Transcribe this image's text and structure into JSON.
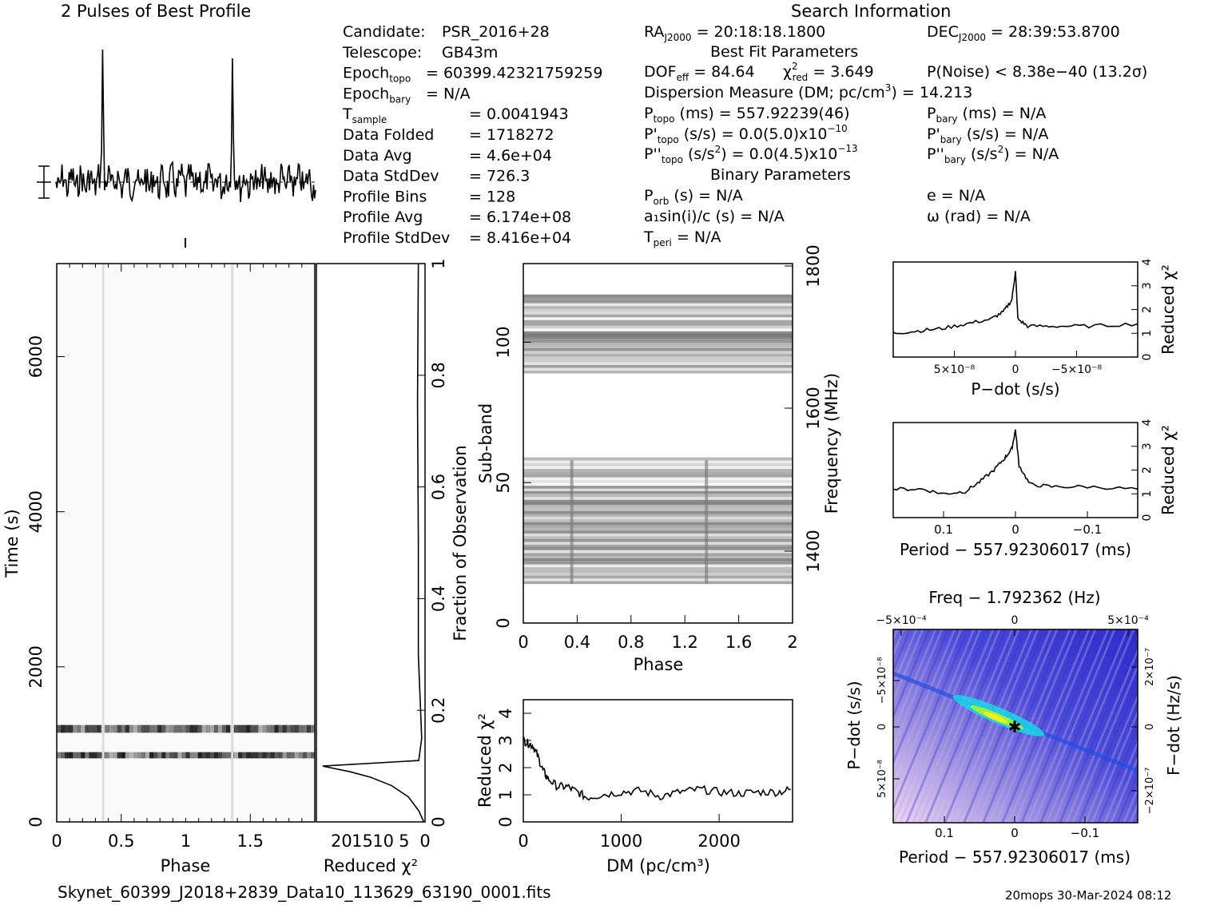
{
  "page": {
    "profile_title": "2 Pulses of Best Profile",
    "search_title": "Search Information",
    "footer_file": "Skynet_60399_J2018+2839_Data10_113629_63190_0001.fits",
    "footer_stamp": "20mops 30-Mar-2024 08:12"
  },
  "info": {
    "left": [
      {
        "label": "Candidate:",
        "value": "PSR_2016+28"
      },
      {
        "label": "Telescope:",
        "value": "GB43m"
      },
      {
        "label": "Epoch",
        "sub": "topo",
        "value": "= 60399.42321759259"
      },
      {
        "label": "Epoch",
        "sub": "bary",
        "value": "= N/A"
      },
      {
        "label": "T",
        "sub": "sample",
        "value": "=   0.0041943"
      },
      {
        "label": "Data Folded",
        "value": "=   1718272"
      },
      {
        "label": "Data Avg",
        "value": "=   4.6e+04"
      },
      {
        "label": "Data StdDev",
        "value": "=   726.3"
      },
      {
        "label": "Profile Bins",
        "value": "=   128"
      },
      {
        "label": "Profile Avg",
        "value": "=   6.174e+08"
      },
      {
        "label": "Profile StdDev",
        "value": "=   8.416e+04"
      }
    ],
    "ra": "= 20:18:18.1800",
    "dec": "= 28:39:53.8700",
    "best_fit_header": "Best Fit Parameters",
    "dof": "= 84.64",
    "chi2red": "= 3.649",
    "pnoise": "P(Noise) < 8.38e−40   (13.2σ)",
    "dm": "Dispersion Measure (DM; pc/cm",
    "dm_value": ") = 14.213",
    "ptopo": "(ms) =  557.92239(46)",
    "pdtopo": "(s/s) = 0.0(5.0)x10",
    "pdtopo_exp": "−10",
    "pddtopo": "(s/s",
    "pddtopo_val": ") = 0.0(4.5)x10",
    "pddtopo_exp": "−13",
    "pbary": "(ms) = N/A",
    "pdbary": "(s/s) = N/A",
    "pddbary": ") = N/A",
    "binary_header": "Binary Parameters",
    "porb": "(s) = N/A",
    "asini": "a₁sin(i)/c (s) = N/A",
    "tperi": "= N/A",
    "ecc": "e = N/A",
    "omega": "ω (rad) = N/A"
  },
  "axes": {
    "time_ylabel": "Time (s)",
    "phase": "Phase",
    "redchi": "Reduced χ²",
    "frac_obs": "Fraction of Observation",
    "subband": "Sub-band",
    "frequency": "Frequency (MHz)",
    "dm_xlabel": "DM (pc/cm³)",
    "pdot_xlabel": "P−dot (s/s)",
    "period_xlabel": "Period − 557.92306017 (ms)",
    "freq_title": "Freq − 1.792362 (Hz)",
    "pdot_ylabel": "P−dot (s/s)",
    "fdot_ylabel": "F−dot (Hz/s)"
  },
  "chart_data": [
    {
      "type": "line",
      "id": "profile",
      "title": "2 Pulses of Best Profile",
      "x_range": [
        0,
        2
      ],
      "pulse_phases": [
        0.36,
        1.36
      ],
      "note_series": "two pulse periods of folded profile, noise-like baseline with single narrow spike per period"
    },
    {
      "type": "heatmap",
      "id": "time_phase",
      "xlabel": "Phase",
      "ylabel": "Time (s)",
      "xlim": [
        0,
        2
      ],
      "ylim": [
        0,
        7200
      ],
      "x_ticks": [
        "0",
        "0.5",
        "1",
        "1.5"
      ],
      "y_ticks": [
        "0",
        "2000",
        "4000",
        "6000"
      ],
      "bright_bands_s": [
        [
          1150,
          1250
        ],
        [
          820,
          900
        ]
      ]
    },
    {
      "type": "line",
      "id": "redchi_time",
      "xlabel": "Reduced χ²",
      "ylabel": "Fraction of Observation",
      "x_ticks": [
        "20",
        "15",
        "10",
        "5",
        "0"
      ],
      "y_ticks": [
        "0",
        "0.2",
        "0.4",
        "0.6",
        "0.8",
        "1"
      ],
      "points": [
        [
          0.3,
          0
        ],
        [
          1.5,
          0.02
        ],
        [
          4,
          0.045
        ],
        [
          8,
          0.065
        ],
        [
          13,
          0.08
        ],
        [
          18,
          0.09
        ],
        [
          24.5,
          0.1
        ],
        [
          1.5,
          0.11
        ],
        [
          0.8,
          0.15
        ],
        [
          1.6,
          0.3
        ],
        [
          1.6,
          0.5
        ],
        [
          1.8,
          0.75
        ],
        [
          1.6,
          1.0
        ]
      ]
    },
    {
      "type": "heatmap",
      "id": "subband_phase",
      "xlabel": "Phase",
      "ylabel": "Sub-band",
      "y2label": "Frequency (MHz)",
      "xlim": [
        0,
        2
      ],
      "ylim": [
        0,
        128
      ],
      "x_ticks": [
        "0",
        "0.4",
        "0.8",
        "1.2",
        "1.6",
        "2"
      ],
      "y_ticks": [
        "0",
        "50",
        "100"
      ],
      "y2_ticks": [
        "1400",
        "1600",
        "1800"
      ],
      "active_bands": [
        [
          14,
          58
        ],
        [
          89,
          116
        ]
      ]
    },
    {
      "type": "line",
      "id": "dm_curve",
      "xlabel": "DM (pc/cm³)",
      "ylabel": "Reduced χ²",
      "xlim": [
        0,
        2750
      ],
      "ylim": [
        0,
        4.5
      ],
      "x_ticks": [
        "0",
        "1000",
        "2000"
      ],
      "y_ticks": [
        "0",
        "1",
        "2",
        "3",
        "4"
      ],
      "points": [
        [
          0,
          3.0
        ],
        [
          50,
          2.9
        ],
        [
          100,
          2.8
        ],
        [
          150,
          2.4
        ],
        [
          200,
          1.9
        ],
        [
          250,
          1.6
        ],
        [
          350,
          1.3
        ],
        [
          450,
          1.3
        ],
        [
          550,
          1.1
        ],
        [
          650,
          0.9
        ],
        [
          800,
          1.0
        ],
        [
          1000,
          1.1
        ],
        [
          1200,
          1.15
        ],
        [
          1400,
          0.95
        ],
        [
          1600,
          1.1
        ],
        [
          1800,
          1.2
        ],
        [
          2000,
          1.1
        ],
        [
          2200,
          1.05
        ],
        [
          2400,
          1.1
        ],
        [
          2600,
          1.1
        ],
        [
          2750,
          1.2
        ]
      ]
    },
    {
      "type": "line",
      "id": "pdot_curve",
      "xlabel": "P−dot (s/s)",
      "ylabel": "Reduced χ²",
      "xlim": [
        1e-07,
        -1e-07
      ],
      "ylim": [
        0,
        4
      ],
      "x_ticks": [
        "5×10⁻⁸",
        "0",
        "−5×10⁻⁸"
      ],
      "y_ticks": [
        "0",
        "1",
        "2",
        "3",
        "4"
      ],
      "points": [
        [
          1e-07,
          1.0
        ],
        [
          8e-08,
          1.1
        ],
        [
          6e-08,
          1.2
        ],
        [
          4e-08,
          1.4
        ],
        [
          2e-08,
          1.6
        ],
        [
          1e-08,
          1.9
        ],
        [
          3e-09,
          2.4
        ],
        [
          0,
          3.6
        ],
        [
          -2e-09,
          1.6
        ],
        [
          -1e-08,
          1.3
        ],
        [
          -3e-08,
          1.3
        ],
        [
          -6e-08,
          1.3
        ],
        [
          -1e-07,
          1.4
        ]
      ]
    },
    {
      "type": "line",
      "id": "period_curve",
      "xlabel": "Period − 557.92306017 (ms)",
      "ylabel": "Reduced χ²",
      "xlim": [
        0.17,
        -0.17
      ],
      "ylim": [
        0,
        4
      ],
      "x_ticks": [
        "0.1",
        "0",
        "−0.1"
      ],
      "y_ticks": [
        "0",
        "1",
        "2",
        "3",
        "4"
      ],
      "points": [
        [
          0.17,
          1.2
        ],
        [
          0.13,
          1.2
        ],
        [
          0.1,
          1.0
        ],
        [
          0.07,
          1.1
        ],
        [
          0.05,
          1.5
        ],
        [
          0.03,
          2.0
        ],
        [
          0.015,
          2.5
        ],
        [
          0.005,
          2.9
        ],
        [
          0,
          3.7
        ],
        [
          -0.005,
          2.2
        ],
        [
          -0.02,
          1.4
        ],
        [
          -0.05,
          1.3
        ],
        [
          -0.1,
          1.3
        ],
        [
          -0.17,
          1.2
        ]
      ]
    },
    {
      "type": "heatmap",
      "id": "period_pdot",
      "title": "Freq − 1.792362 (Hz)",
      "xlabel": "Period − 557.92306017 (ms)",
      "ylabel": "P−dot (s/s)",
      "y2label": "F−dot (Hz/s)",
      "x_ticks": [
        "0.1",
        "0",
        "−0.1"
      ],
      "x2_ticks": [
        "−5×10⁻⁴",
        "0",
        "5×10⁻⁴"
      ],
      "y_ticks": [
        "−5×10⁻⁸",
        "0",
        "5×10⁻⁸"
      ],
      "y2_ticks": [
        "2×10⁻⁷",
        "0",
        "−2×10⁻⁷"
      ],
      "peak": [
        0,
        0
      ]
    }
  ]
}
